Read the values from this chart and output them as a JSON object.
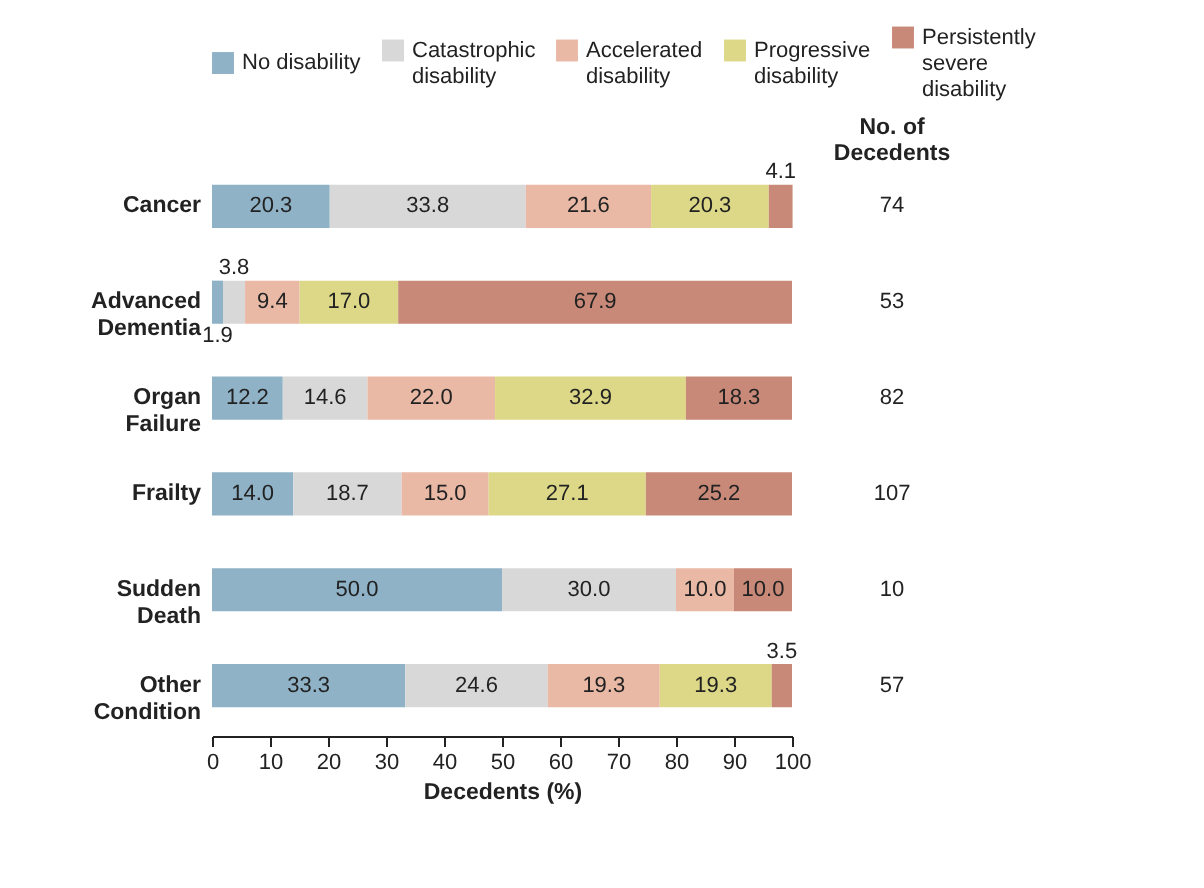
{
  "chart_data": {
    "type": "bar",
    "orientation": "horizontal",
    "stacked": true,
    "xlabel": "Decedents (%)",
    "xlim": [
      0,
      100
    ],
    "xticks": [
      0,
      10,
      20,
      30,
      40,
      50,
      60,
      70,
      80,
      90,
      100
    ],
    "legend": "top",
    "categories": [
      "Cancer",
      "Advanced Dementia",
      "Organ Failure",
      "Frailty",
      "Sudden Death",
      "Other Condition"
    ],
    "series": [
      {
        "name": "No disability",
        "color": "#8fb2c6",
        "values": [
          20.3,
          1.9,
          12.2,
          14.0,
          50.0,
          33.3
        ],
        "value_labels": [
          "20.3",
          "1.9",
          "12.2",
          "14.0",
          "50.0",
          "33.3"
        ]
      },
      {
        "name": "Catastrophic disability",
        "color": "#d8d8d8",
        "values": [
          33.8,
          3.8,
          14.6,
          18.7,
          30.0,
          24.6
        ],
        "value_labels": [
          "33.8",
          "3.8",
          "14.6",
          "18.7",
          "30.0",
          "24.6"
        ]
      },
      {
        "name": "Accelerated disability",
        "color": "#e9b9a6",
        "values": [
          21.6,
          9.4,
          22.0,
          15.0,
          10.0,
          19.3
        ],
        "value_labels": [
          "21.6",
          "9.4",
          "22.0",
          "15.0",
          "10.0",
          "19.3"
        ]
      },
      {
        "name": "Progressive disability",
        "color": "#ddd887",
        "values": [
          20.3,
          17.0,
          32.9,
          27.1,
          null,
          19.3
        ],
        "value_labels": [
          "20.3",
          "17.0",
          "32.9",
          "27.1",
          null,
          "19.3"
        ]
      },
      {
        "name": "Persistently severe disability",
        "color": "#c98979",
        "values": [
          4.1,
          67.9,
          18.3,
          25.2,
          10.0,
          3.5
        ],
        "value_labels": [
          "4.1",
          "67.9",
          "18.3",
          "25.2",
          "10.0",
          "3.5"
        ]
      }
    ],
    "annotations": [
      "No. of Decedents",
      "74",
      "53",
      "82",
      "107",
      "10",
      "57"
    ]
  }
}
